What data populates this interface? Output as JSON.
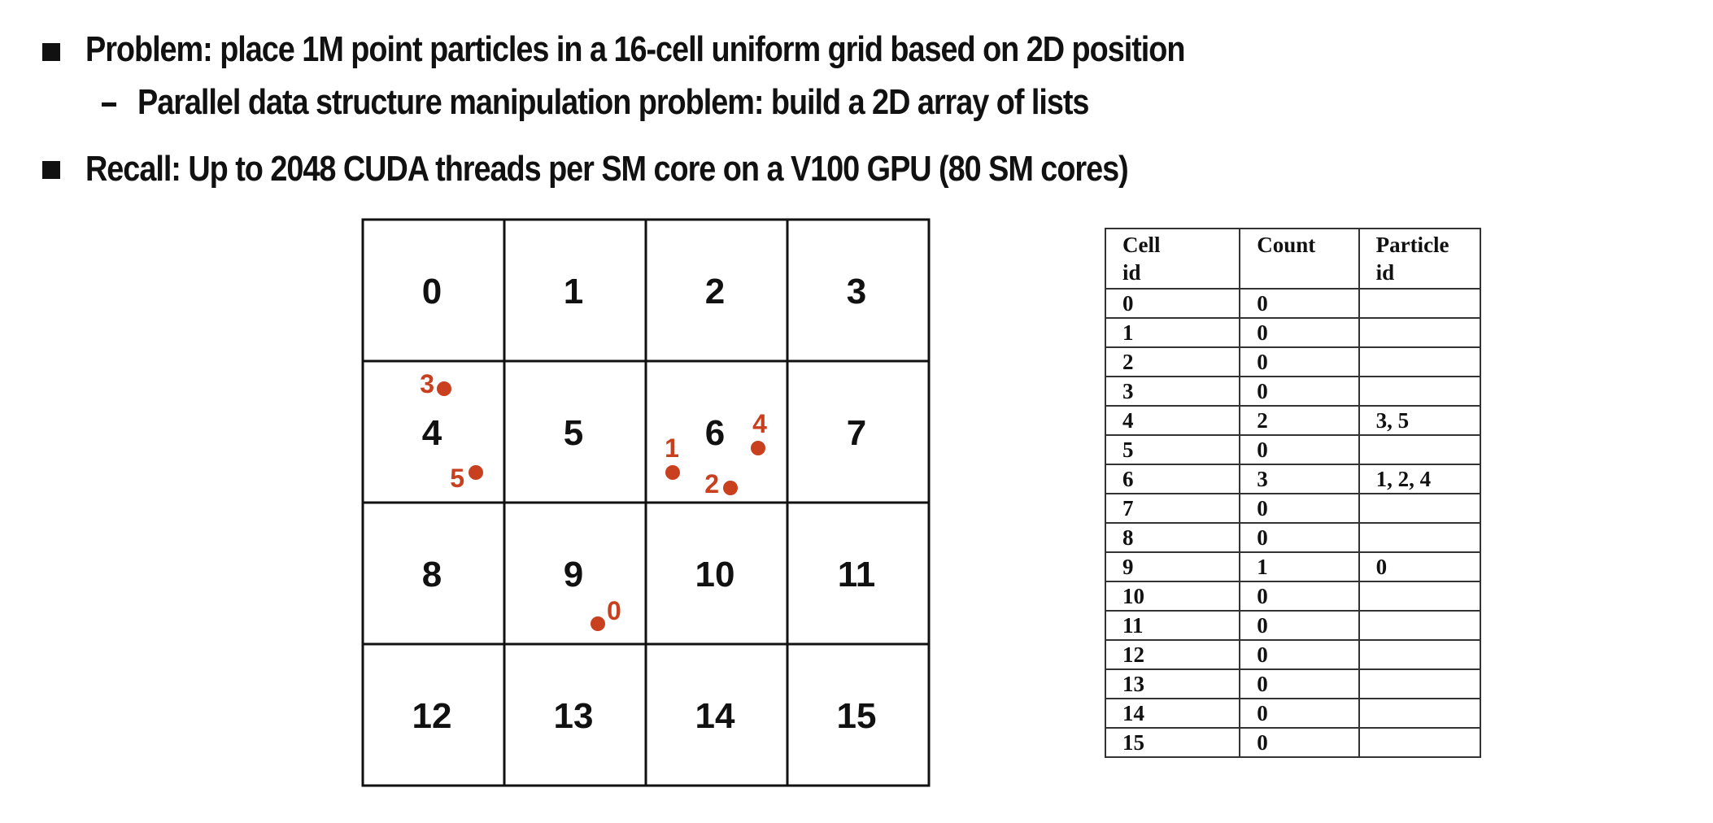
{
  "bullets": {
    "problem": "Problem: place 1M point particles in a 16-cell uniform grid based on 2D position",
    "sub": "Parallel data structure manipulation problem: build a 2D array of lists",
    "recall": "Recall: Up to 2048 CUDA threads per SM core on a V100 GPU (80 SM cores)"
  },
  "grid": {
    "cells": [
      "0",
      "1",
      "2",
      "3",
      "4",
      "5",
      "6",
      "7",
      "8",
      "9",
      "10",
      "11",
      "12",
      "13",
      "14",
      "15"
    ],
    "particle_color": "#c8401e",
    "particles": [
      {
        "label": "0",
        "cell": "9"
      },
      {
        "label": "1",
        "cell": "6"
      },
      {
        "label": "2",
        "cell": "6"
      },
      {
        "label": "3",
        "cell": "4"
      },
      {
        "label": "4",
        "cell": "6"
      },
      {
        "label": "5",
        "cell": "4"
      }
    ]
  },
  "table": {
    "headers": [
      "Cell id",
      "Count",
      "Particle id"
    ],
    "header_lines": [
      [
        "Cell",
        "id"
      ],
      [
        "Count",
        ""
      ],
      [
        "Particle",
        "id"
      ]
    ],
    "rows": [
      [
        "0",
        "0",
        ""
      ],
      [
        "1",
        "0",
        ""
      ],
      [
        "2",
        "0",
        ""
      ],
      [
        "3",
        "0",
        ""
      ],
      [
        "4",
        "2",
        "3, 5"
      ],
      [
        "5",
        "0",
        ""
      ],
      [
        "6",
        "3",
        "1, 2, 4"
      ],
      [
        "7",
        "0",
        ""
      ],
      [
        "8",
        "0",
        ""
      ],
      [
        "9",
        "1",
        "0"
      ],
      [
        "10",
        "0",
        ""
      ],
      [
        "11",
        "0",
        ""
      ],
      [
        "12",
        "0",
        ""
      ],
      [
        "13",
        "0",
        ""
      ],
      [
        "14",
        "0",
        ""
      ],
      [
        "15",
        "0",
        ""
      ]
    ]
  }
}
